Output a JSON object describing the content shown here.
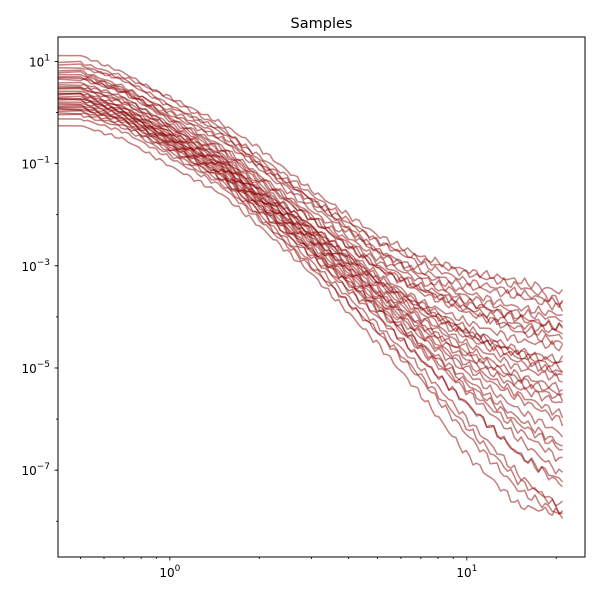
{
  "chart_data": {
    "type": "line",
    "title": "Samples",
    "xlabel": "",
    "ylabel": "",
    "xscale": "log",
    "yscale": "log",
    "xlim": [
      0.42,
      25
    ],
    "ylim": [
      2e-09,
      30
    ],
    "grid": false,
    "legend": "none",
    "line_color": "#8b0000",
    "line_opacity": 0.5,
    "x_ticks": [
      {
        "value": 1,
        "base": "10",
        "exp": "0"
      },
      {
        "value": 10,
        "base": "10",
        "exp": "1"
      }
    ],
    "y_ticks": [
      {
        "value": 10,
        "base": "10",
        "exp": "1"
      },
      {
        "value": 0.1,
        "base": "10",
        "exp": "−1"
      },
      {
        "value": 0.001,
        "base": "10",
        "exp": "−3"
      },
      {
        "value": 1e-05,
        "base": "10",
        "exp": "−5"
      },
      {
        "value": 1e-07,
        "base": "10",
        "exp": "−7"
      }
    ],
    "x": [
      0.5,
      0.7,
      1.0,
      1.5,
      2.0,
      3.0,
      5.0,
      7.0,
      10.0,
      15.0,
      21.0
    ],
    "series": [
      {
        "values": [
          13,
          6.0,
          1.8,
          0.5,
          0.12,
          0.02,
          0.003,
          0.0013,
          0.0007,
          0.0004,
          0.0002
        ]
      },
      {
        "values": [
          9.5,
          5.0,
          2.0,
          0.6,
          0.2,
          0.03,
          0.004,
          0.0015,
          0.0008,
          0.0005,
          0.0003
        ]
      },
      {
        "values": [
          7.5,
          4.5,
          1.4,
          0.4,
          0.1,
          0.02,
          0.002,
          0.0008,
          0.0004,
          0.00025,
          0.00015
        ]
      },
      {
        "values": [
          6.5,
          3.2,
          1.0,
          0.3,
          0.09,
          0.015,
          0.0018,
          0.0006,
          0.00025,
          0.00012,
          9e-05
        ]
      },
      {
        "values": [
          5.5,
          2.8,
          0.8,
          0.22,
          0.06,
          0.01,
          0.0012,
          0.0004,
          0.00018,
          0.0001,
          6e-05
        ]
      },
      {
        "values": [
          4.5,
          2.4,
          0.7,
          0.18,
          0.05,
          0.008,
          0.0009,
          0.0003,
          0.00012,
          6e-05,
          4e-05
        ]
      },
      {
        "values": [
          3.8,
          2.0,
          0.55,
          0.15,
          0.04,
          0.006,
          0.0007,
          0.0002,
          8e-05,
          3.5e-05,
          2.5e-05
        ]
      },
      {
        "values": [
          3.2,
          1.6,
          0.45,
          0.12,
          0.03,
          0.005,
          0.0005,
          0.00015,
          5e-05,
          2e-05,
          1.2e-05
        ]
      },
      {
        "values": [
          2.6,
          1.3,
          0.38,
          0.1,
          0.025,
          0.004,
          0.0004,
          0.0001,
          3e-05,
          1e-05,
          6e-06
        ]
      },
      {
        "values": [
          2.2,
          1.1,
          0.33,
          0.09,
          0.022,
          0.0035,
          0.0003,
          7e-05,
          2e-05,
          6e-06,
          3e-06
        ]
      },
      {
        "values": [
          1.9,
          1.0,
          0.3,
          0.08,
          0.02,
          0.003,
          0.00025,
          5e-05,
          1.2e-05,
          3e-06,
          1.2e-06
        ]
      },
      {
        "values": [
          1.6,
          0.9,
          0.27,
          0.07,
          0.018,
          0.0025,
          0.0002,
          4e-05,
          8e-06,
          1.5e-06,
          5e-07
        ]
      },
      {
        "values": [
          1.4,
          0.8,
          0.24,
          0.06,
          0.015,
          0.002,
          0.00015,
          2.5e-05,
          4e-06,
          6e-07,
          1.5e-07
        ]
      },
      {
        "values": [
          1.2,
          0.7,
          0.2,
          0.05,
          0.012,
          0.0015,
          0.0001,
          1.5e-05,
          2e-06,
          2e-07,
          6e-08
        ]
      },
      {
        "values": [
          1.05,
          0.6,
          0.17,
          0.045,
          0.01,
          0.0012,
          7e-05,
          1e-05,
          1e-06,
          8e-08,
          1.5e-08
        ]
      },
      {
        "values": [
          0.9,
          0.5,
          0.15,
          0.04,
          0.009,
          0.001,
          5e-05,
          6e-06,
          5e-07,
          4e-08,
          1.3e-08
        ]
      },
      {
        "values": [
          0.55,
          0.3,
          0.09,
          0.025,
          0.006,
          0.0007,
          3e-05,
          3e-06,
          2e-07,
          2e-08,
          1.4e-08
        ]
      },
      {
        "values": [
          6.0,
          2.9,
          1.1,
          0.35,
          0.1,
          0.018,
          0.002,
          0.0007,
          0.0003,
          0.00015,
          0.00011
        ]
      },
      {
        "values": [
          4.8,
          2.5,
          0.9,
          0.28,
          0.08,
          0.012,
          0.0014,
          0.0005,
          0.0002,
          9e-05,
          6e-05
        ]
      },
      {
        "values": [
          3.5,
          1.9,
          0.6,
          0.17,
          0.045,
          0.008,
          0.0009,
          0.00035,
          0.00015,
          7e-05,
          5e-05
        ]
      },
      {
        "values": [
          2.9,
          1.5,
          0.5,
          0.14,
          0.035,
          0.006,
          0.0006,
          0.00018,
          6e-05,
          2.2e-05,
          1.4e-05
        ]
      },
      {
        "values": [
          2.4,
          1.2,
          0.4,
          0.11,
          0.028,
          0.0045,
          0.00045,
          0.00012,
          4e-05,
          1.3e-05,
          8e-06
        ]
      },
      {
        "values": [
          2.0,
          1.05,
          0.35,
          0.1,
          0.024,
          0.004,
          0.00035,
          9e-05,
          2.5e-05,
          7e-06,
          4e-06
        ]
      },
      {
        "values": [
          1.75,
          0.95,
          0.31,
          0.085,
          0.021,
          0.0032,
          0.00028,
          6e-05,
          1.5e-05,
          4e-06,
          2e-06
        ]
      },
      {
        "values": [
          1.5,
          0.85,
          0.28,
          0.075,
          0.019,
          0.0028,
          0.00022,
          4.5e-05,
          1e-05,
          2.5e-06,
          9e-07
        ]
      },
      {
        "values": [
          1.3,
          0.75,
          0.25,
          0.065,
          0.016,
          0.0022,
          0.00018,
          3e-05,
          6e-06,
          1e-06,
          3e-07
        ]
      },
      {
        "values": [
          1.15,
          0.65,
          0.22,
          0.058,
          0.014,
          0.0019,
          0.00014,
          2.2e-05,
          3.5e-06,
          4e-07,
          8e-08
        ]
      },
      {
        "values": [
          0.98,
          0.55,
          0.19,
          0.05,
          0.012,
          0.0016,
          0.00011,
          1.5e-05,
          2e-06,
          2e-07,
          5e-08
        ]
      },
      {
        "values": [
          8.5,
          4.2,
          1.3,
          0.45,
          0.14,
          0.025,
          0.003,
          0.0011,
          0.0005,
          0.0003,
          0.00018
        ]
      },
      {
        "values": [
          5.0,
          2.6,
          0.75,
          0.2,
          0.055,
          0.009,
          0.001,
          0.00035,
          0.00014,
          5e-05,
          3e-05
        ]
      },
      {
        "values": [
          3.0,
          1.7,
          0.52,
          0.13,
          0.032,
          0.0055,
          0.00055,
          0.00016,
          5e-05,
          1.8e-05,
          1e-05
        ]
      },
      {
        "values": [
          2.3,
          1.25,
          0.42,
          0.12,
          0.03,
          0.005,
          0.0005,
          0.00014,
          4.5e-05,
          1.6e-05,
          7e-06
        ]
      },
      {
        "values": [
          1.85,
          1.0,
          0.32,
          0.09,
          0.022,
          0.0036,
          0.0003,
          7e-05,
          1.8e-05,
          5e-06,
          2.5e-06
        ]
      },
      {
        "values": [
          1.25,
          0.72,
          0.23,
          0.06,
          0.015,
          0.002,
          0.00016,
          2.8e-05,
          5e-06,
          8e-07,
          2.5e-07
        ]
      },
      {
        "values": [
          0.75,
          0.42,
          0.13,
          0.035,
          0.008,
          0.0009,
          5.5e-05,
          7e-06,
          7e-07,
          6e-08,
          2e-08
        ]
      }
    ]
  }
}
